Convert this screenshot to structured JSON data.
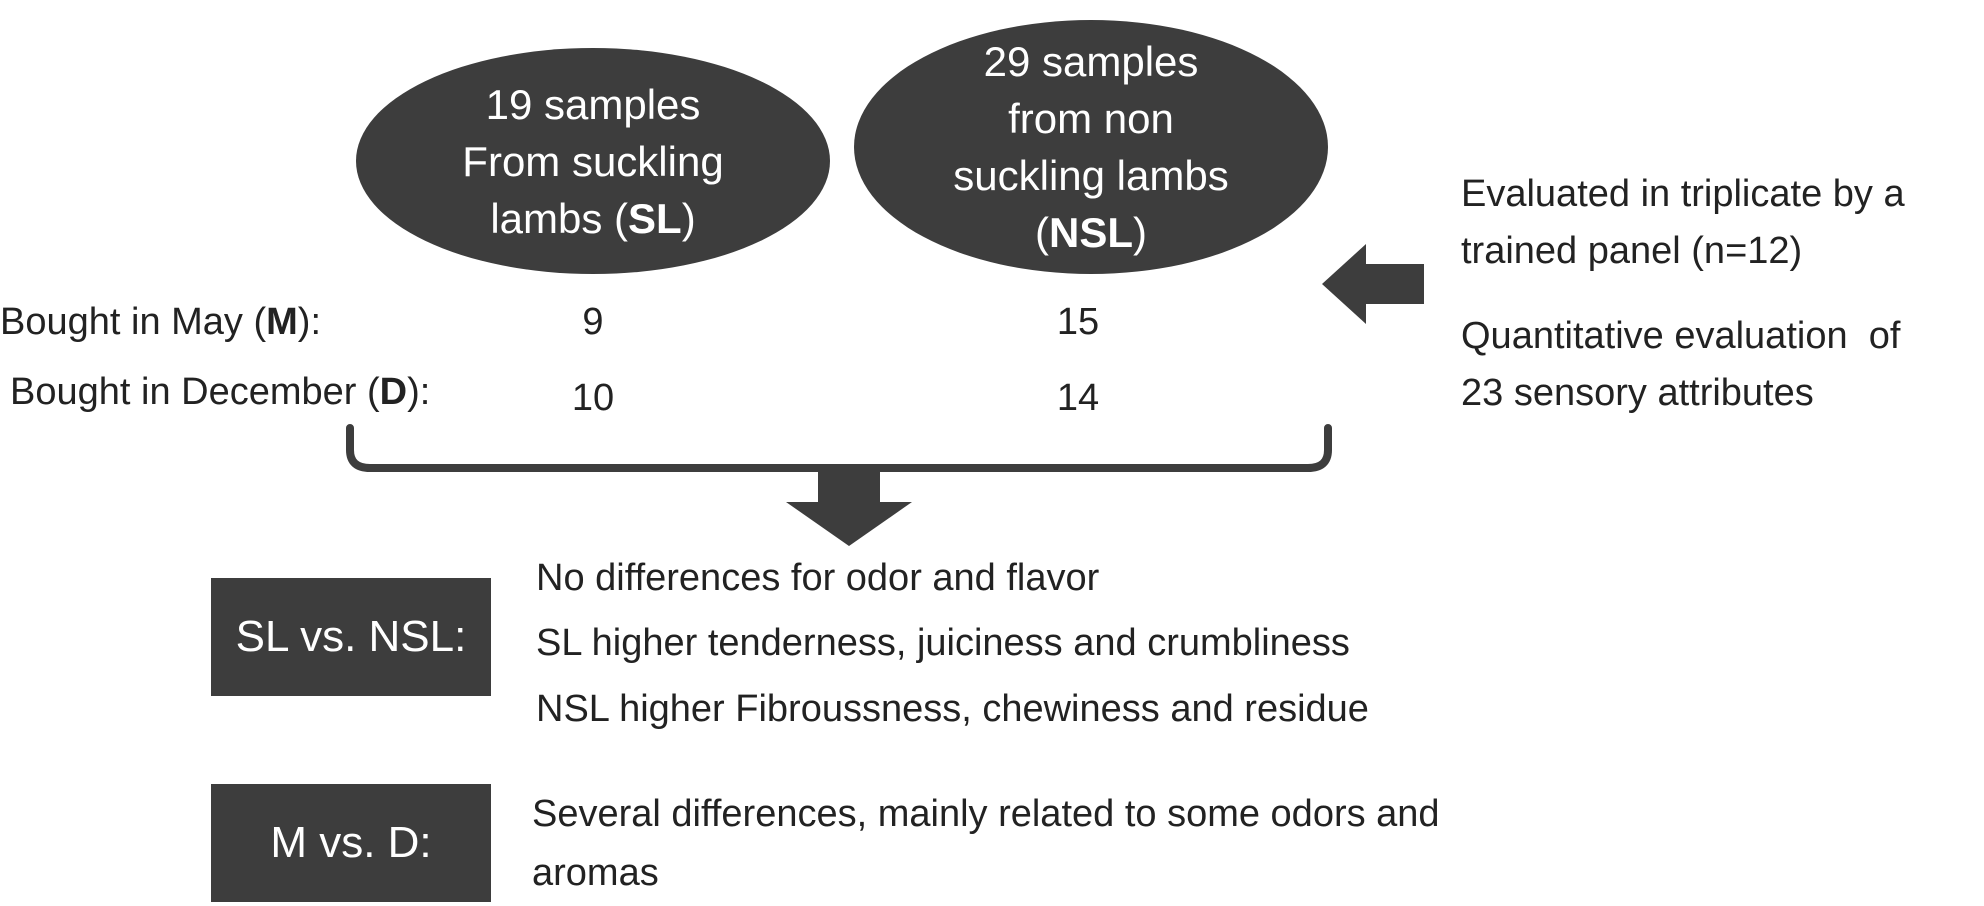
{
  "groups": {
    "sl": {
      "line1": "19 samples",
      "line2": "From suckling",
      "line3_prefix": "lambs (",
      "line3_bold": "SL",
      "line3_suffix": ")"
    },
    "nsl": {
      "line1": "29 samples",
      "line2": "from non",
      "line3": "suckling lambs",
      "line4_prefix": "(",
      "line4_bold": "NSL",
      "line4_suffix": ")"
    }
  },
  "rows": [
    {
      "label_prefix": "Bought in May (",
      "label_bold": "M",
      "label_suffix": "):",
      "sl_count": "9",
      "nsl_count": "15"
    },
    {
      "label_prefix": "Bought in December (",
      "label_bold": "D",
      "label_suffix": "):",
      "sl_count": "10",
      "nsl_count": "14"
    }
  ],
  "evaluation": {
    "line1": "Evaluated in triplicate by a",
    "line2": "trained panel (n=12)",
    "line3": "Quantitative evaluation  of",
    "line4": "23 sensory attributes"
  },
  "results": {
    "sl_vs_nsl": {
      "label": "SL vs. NSL:",
      "items": [
        "No differences for odor and flavor",
        "SL higher tenderness, juiciness and crumbliness",
        "NSL higher Fibroussness, chewiness and residue"
      ]
    },
    "m_vs_d": {
      "label": "M vs. D:",
      "line1": "Several differences, mainly related to some odors and",
      "line2": "aromas"
    }
  },
  "colors": {
    "dark_fill": "#3d3d3d",
    "text": "#222222",
    "light_text": "#ffffff"
  }
}
